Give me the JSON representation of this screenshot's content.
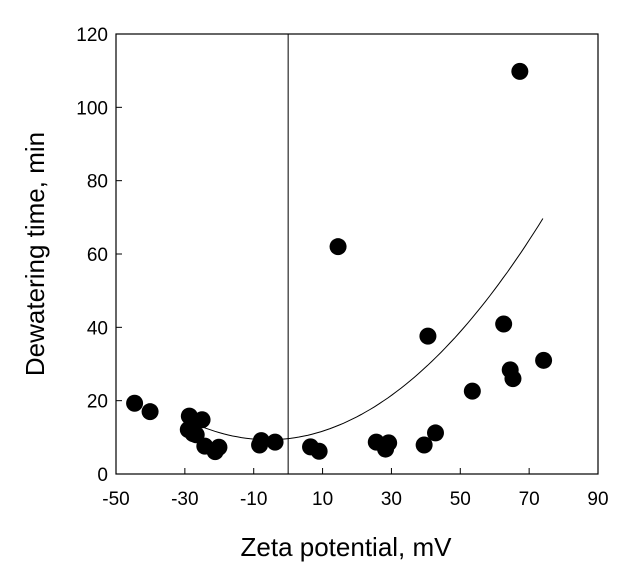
{
  "chart_data": {
    "type": "scatter",
    "title": "",
    "xlabel": "Zeta potential, mV",
    "ylabel": "Dewatering time, min",
    "xlim": [
      -50,
      90
    ],
    "ylim": [
      0,
      120
    ],
    "x_ticks": [
      -50,
      -30,
      -10,
      10,
      30,
      50,
      70,
      90
    ],
    "y_ticks": [
      0,
      20,
      40,
      60,
      80,
      100,
      120
    ],
    "x_tick_labels": [
      "-50",
      "-30",
      "-10",
      "10",
      "30",
      "50",
      "70",
      "90"
    ],
    "y_tick_labels": [
      "0",
      "20",
      "40",
      "60",
      "80",
      "100",
      "120"
    ],
    "reference_line_x": 0,
    "series": [
      {
        "name": "measurements",
        "points": [
          [
            -44.6,
            19.3
          ],
          [
            -40.1,
            17.0
          ],
          [
            -29.0,
            12.1
          ],
          [
            -28.7,
            15.8
          ],
          [
            -28.0,
            13.2
          ],
          [
            -27.6,
            11.0
          ],
          [
            -26.7,
            10.7
          ],
          [
            -25.0,
            14.8
          ],
          [
            -24.2,
            7.6
          ],
          [
            -21.2,
            6.1
          ],
          [
            -20.1,
            7.3
          ],
          [
            -8.3,
            7.9
          ],
          [
            -7.8,
            9.1
          ],
          [
            -3.8,
            8.7
          ],
          [
            6.5,
            7.4
          ],
          [
            9.0,
            6.2
          ],
          [
            14.5,
            62.0
          ],
          [
            25.6,
            8.7
          ],
          [
            28.3,
            6.8
          ],
          [
            29.2,
            8.5
          ],
          [
            39.5,
            7.9
          ],
          [
            40.6,
            37.6
          ],
          [
            42.8,
            11.2
          ],
          [
            53.5,
            22.6
          ],
          [
            62.6,
            40.9
          ],
          [
            64.5,
            28.4
          ],
          [
            65.3,
            26.0
          ],
          [
            67.3,
            109.8
          ],
          [
            74.2,
            31.0
          ]
        ]
      }
    ],
    "trendline": {
      "type": "quadratic",
      "x_range": [
        -29,
        74
      ],
      "coefficients": {
        "a": 0.0095,
        "b": 0.1083,
        "c": 9.65
      }
    }
  }
}
